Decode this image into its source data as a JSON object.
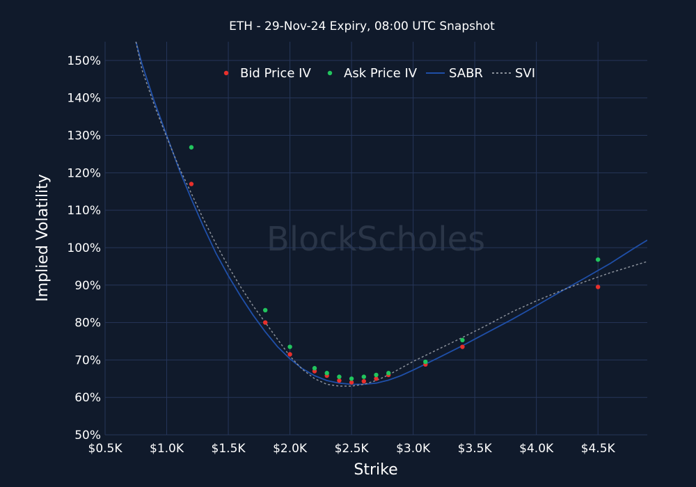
{
  "chart_data": {
    "type": "scatter",
    "title": "ETH - 29-Nov-24 Expiry, 08:00 UTC Snapshot",
    "xlabel": "Strike",
    "ylabel": "Implied Volatility",
    "watermark": "BlockScholes",
    "xlim": [
      500,
      4900
    ],
    "ylim": [
      50,
      155
    ],
    "x_ticks": [
      500,
      1000,
      1500,
      2000,
      2500,
      3000,
      3500,
      4000,
      4500
    ],
    "x_tick_labels": [
      "$0.5K",
      "$1.0K",
      "$1.5K",
      "$2.0K",
      "$2.5K",
      "$3.0K",
      "$3.5K",
      "$4.0K",
      "$4.5K"
    ],
    "y_ticks": [
      50,
      60,
      70,
      80,
      90,
      100,
      110,
      120,
      130,
      140,
      150
    ],
    "y_tick_labels": [
      "50%",
      "60%",
      "70%",
      "80%",
      "90%",
      "100%",
      "110%",
      "120%",
      "130%",
      "140%",
      "150%"
    ],
    "legend_position": "top-center",
    "colors": {
      "background": "#101a2b",
      "grid": "#26365a",
      "bid": "#e8302c",
      "ask": "#22c55e",
      "sabr": "#1f4fa8",
      "svi": "#8a909a"
    },
    "series": [
      {
        "name": "Bid Price IV",
        "kind": "markers",
        "x": [
          1200,
          1800,
          2000,
          2200,
          2300,
          2400,
          2500,
          2600,
          2700,
          2800,
          3100,
          3400,
          4500
        ],
        "y": [
          117.0,
          80.0,
          71.5,
          67.0,
          65.8,
          64.5,
          64.0,
          64.3,
          65.0,
          66.0,
          68.8,
          73.5,
          89.5
        ]
      },
      {
        "name": "Ask Price IV",
        "kind": "markers",
        "x": [
          1200,
          1800,
          2000,
          2200,
          2300,
          2400,
          2500,
          2600,
          2700,
          2800,
          3100,
          3400,
          4500
        ],
        "y": [
          126.8,
          83.3,
          73.5,
          67.8,
          66.5,
          65.5,
          65.0,
          65.5,
          66.0,
          66.5,
          69.5,
          75.3,
          96.8
        ]
      },
      {
        "name": "SABR",
        "kind": "line",
        "x": [
          750,
          800,
          900,
          1000,
          1100,
          1200,
          1300,
          1400,
          1500,
          1600,
          1700,
          1800,
          1900,
          2000,
          2100,
          2200,
          2300,
          2400,
          2500,
          2600,
          2700,
          2800,
          2900,
          3000,
          3100,
          3200,
          3400,
          3600,
          3800,
          4000,
          4200,
          4400,
          4600,
          4800,
          4900
        ],
        "y": [
          155.0,
          149.0,
          139.0,
          130.0,
          121.0,
          113.0,
          105.5,
          98.5,
          92.5,
          87.0,
          82.0,
          77.5,
          73.5,
          70.3,
          67.7,
          65.8,
          64.5,
          63.8,
          63.5,
          63.5,
          63.8,
          64.6,
          65.8,
          67.3,
          68.9,
          70.5,
          73.8,
          77.3,
          80.8,
          84.5,
          88.3,
          92.0,
          95.8,
          100.0,
          102.0
        ]
      },
      {
        "name": "SVI",
        "kind": "line",
        "x": [
          750,
          800,
          900,
          1000,
          1100,
          1200,
          1300,
          1400,
          1500,
          1600,
          1700,
          1800,
          1900,
          2000,
          2100,
          2200,
          2300,
          2400,
          2500,
          2600,
          2700,
          2800,
          2900,
          3000,
          3100,
          3200,
          3400,
          3600,
          3800,
          4000,
          4200,
          4400,
          4600,
          4800,
          4900
        ],
        "y": [
          155.0,
          147.5,
          138.0,
          129.5,
          121.5,
          114.5,
          107.5,
          101.0,
          95.0,
          89.5,
          84.5,
          80.0,
          75.5,
          71.0,
          67.5,
          65.0,
          63.5,
          63.0,
          63.0,
          63.5,
          64.5,
          66.0,
          67.8,
          69.6,
          71.2,
          72.8,
          76.0,
          79.3,
          82.8,
          85.8,
          88.5,
          91.0,
          93.3,
          95.3,
          96.3
        ]
      }
    ]
  }
}
